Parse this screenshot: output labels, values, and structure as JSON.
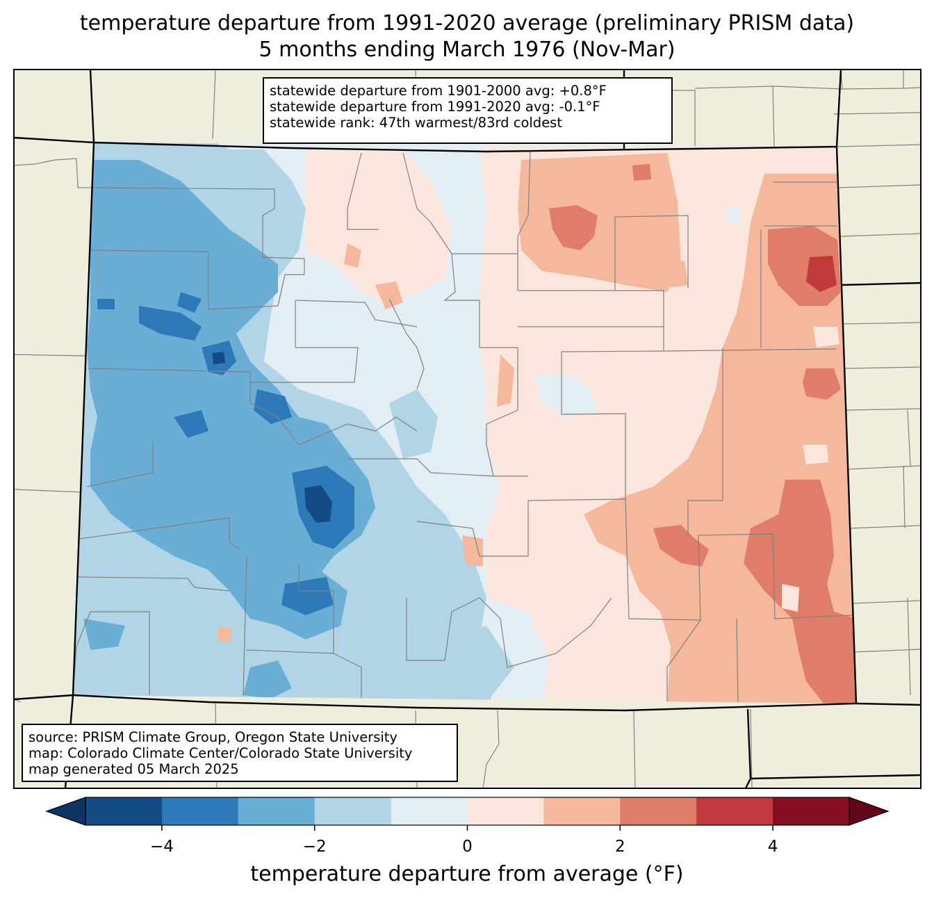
{
  "title": {
    "line1": "temperature departure from 1991-2020 average (preliminary PRISM data)",
    "line2": "5 months ending March 1976 (Nov-Mar)"
  },
  "stats_box": {
    "line1": "statewide departure from 1901-2000 avg: +0.8°F",
    "line2": "statewide departure from 1991-2020 avg: -0.1°F",
    "line3": "statewide rank: 47th warmest/83rd coldest"
  },
  "source_box": {
    "line1": "source: PRISM Climate Group, Oregon State University",
    "line2": "map: Colorado Climate Center/Colorado State University",
    "line3": "map generated 05 March 2025"
  },
  "colorbar": {
    "label": "temperature departure from average (°F)",
    "ticks": [
      "−4",
      "−2",
      "0",
      "2",
      "4"
    ],
    "tick_values": [
      -4,
      -2,
      0,
      2,
      4
    ],
    "bins": [
      {
        "min": -5,
        "max": -4,
        "color": "#144a86"
      },
      {
        "min": -4,
        "max": -3,
        "color": "#2e7ab9"
      },
      {
        "min": -3,
        "max": -2,
        "color": "#6aaed5"
      },
      {
        "min": -2,
        "max": -1,
        "color": "#b1d4e7"
      },
      {
        "min": -1,
        "max": 0,
        "color": "#e3edf4"
      },
      {
        "min": 0,
        "max": 1,
        "color": "#fae6dc"
      },
      {
        "min": 1,
        "max": 2,
        "color": "#f6b89c"
      },
      {
        "min": 2,
        "max": 3,
        "color": "#e07d68"
      },
      {
        "min": 3,
        "max": 4,
        "color": "#c03a3c"
      },
      {
        "min": 4,
        "max": 5,
        "color": "#860e22"
      }
    ],
    "under_color": "#0d3463",
    "over_color": "#64061a"
  },
  "colors": {
    "land": "#efeedc",
    "state_border": "#000000",
    "county_border": "#808080"
  }
}
